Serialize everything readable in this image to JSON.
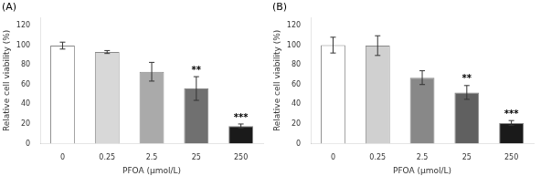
{
  "chart_data": [
    {
      "type": "bar",
      "title": "(A)",
      "categories": [
        "0",
        "0.25",
        "2.5",
        "25",
        "250"
      ],
      "values": [
        99.5,
        93.0,
        73.0,
        56.0,
        18.0
      ],
      "errors": [
        3.5,
        1.5,
        9.5,
        12.0,
        2.0
      ],
      "colors": [
        "#ffffff",
        "#d8d8d8",
        "#aaaaaa",
        "#707070",
        "#1a1a1a"
      ],
      "significance": [
        null,
        null,
        null,
        "**",
        "***"
      ],
      "xlabel": "PFOA (μmol/L)",
      "ylabel": "Relative cell viability (%)",
      "ylim": [
        0,
        128
      ],
      "yticks": [
        0,
        20,
        40,
        60,
        80,
        100,
        120
      ],
      "grid": false
    },
    {
      "type": "bar",
      "title": "(B)",
      "categories": [
        "0",
        "0.25",
        "2.5",
        "25",
        "250"
      ],
      "values": [
        100.0,
        99.5,
        67.0,
        52.0,
        21.0
      ],
      "errors": [
        8.0,
        10.0,
        7.0,
        7.0,
        2.5
      ],
      "colors": [
        "#ffffff",
        "#d0d0d0",
        "#888888",
        "#606060",
        "#1a1a1a"
      ],
      "significance": [
        null,
        null,
        null,
        "**",
        "***"
      ],
      "xlabel": "PFOA (μmol/L)",
      "ylabel": "Relative cell viability (%)",
      "ylim": [
        0,
        128
      ],
      "yticks": [
        0,
        20,
        40,
        60,
        80,
        100,
        120
      ],
      "grid": false
    }
  ]
}
